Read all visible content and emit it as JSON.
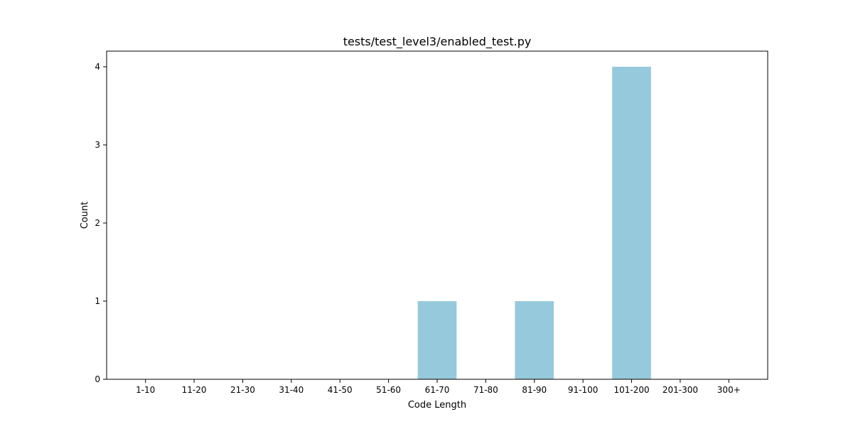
{
  "chart_data": {
    "type": "bar",
    "title": "tests/test_level3/enabled_test.py",
    "xlabel": "Code Length",
    "ylabel": "Count",
    "categories": [
      "1-10",
      "11-20",
      "21-30",
      "31-40",
      "41-50",
      "51-60",
      "61-70",
      "71-80",
      "81-90",
      "91-100",
      "101-200",
      "201-300",
      "300+"
    ],
    "values": [
      0,
      0,
      0,
      0,
      0,
      0,
      1,
      0,
      1,
      0,
      4,
      0,
      0
    ],
    "ylim": [
      0,
      4.2
    ],
    "yticks": [
      0,
      1,
      2,
      3,
      4
    ],
    "grid": false,
    "legend": "none",
    "colors": {
      "bar": "#96c9dc",
      "axes": "#000000",
      "background": "#ffffff"
    }
  }
}
